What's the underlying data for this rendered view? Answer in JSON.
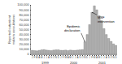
{
  "chart_data": {
    "type": "bar",
    "title": "",
    "ylabel": "Reported outpatient malaria consultations",
    "categories": [
      "J",
      "F",
      "M",
      "A",
      "M",
      "J",
      "J",
      "A",
      "S",
      "O",
      "N",
      "D",
      "J",
      "F",
      "M",
      "A",
      "M",
      "J",
      "J",
      "A",
      "S",
      "O",
      "N",
      "D",
      "J",
      "F",
      "M",
      "A",
      "M",
      "J",
      "J",
      "A",
      "S",
      "O",
      "N",
      "D"
    ],
    "values": [
      8000,
      7500,
      7000,
      8000,
      9000,
      9500,
      8500,
      8000,
      7500,
      8500,
      9000,
      9000,
      8000,
      8000,
      8500,
      7500,
      8500,
      8000,
      8000,
      8500,
      9000,
      9500,
      25000,
      40000,
      60000,
      85000,
      98000,
      90000,
      78000,
      68000,
      52000,
      40000,
      32000,
      26000,
      21000,
      18000
    ],
    "color": "#b0b0b0",
    "ylim": [
      0,
      100000
    ],
    "yticks": [
      0,
      {
        "value": 10000,
        "label": "10,000"
      },
      {
        "value": 20000,
        "label": "20,000"
      },
      {
        "value": 30000,
        "label": "30,000"
      },
      {
        "value": 40000,
        "label": "40,000"
      },
      {
        "value": 50000,
        "label": "50,000"
      },
      {
        "value": 60000,
        "label": "60,000"
      },
      {
        "value": 70000,
        "label": "70,000"
      },
      {
        "value": 80000,
        "label": "80,000"
      },
      {
        "value": 90000,
        "label": "90,000"
      },
      {
        "value": 100000,
        "label": "100,000"
      }
    ],
    "annotations": [
      {
        "text": "1999",
        "x": 5.5
      },
      {
        "text": "2000",
        "x": 17.5
      },
      {
        "text": "2001",
        "x": 29.5
      },
      {
        "text": "MSF\nintervention",
        "x": 25,
        "arrow": true
      },
      {
        "text": "Epidemic\ndeclaration",
        "x": 22,
        "arrow": true
      }
    ],
    "grid": false
  }
}
